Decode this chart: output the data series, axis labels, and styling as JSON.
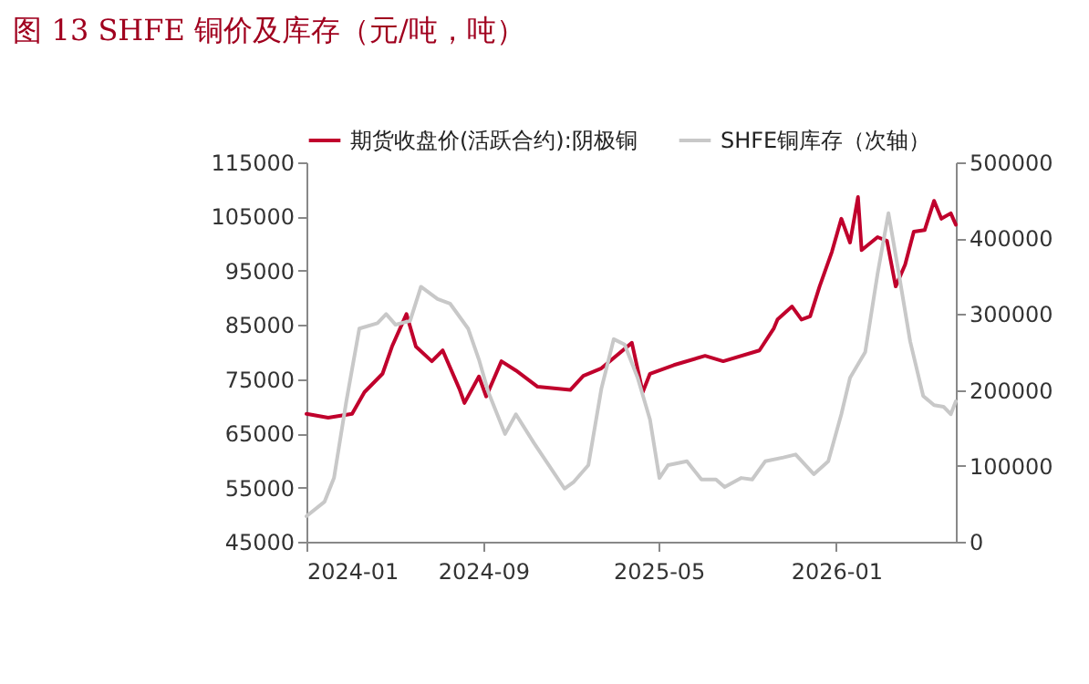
{
  "chart_data": {
    "type": "line",
    "title": "图 13  SHFE 铜价及库存（元/吨，吨）",
    "xlim": [
      "2024-01-01",
      "2026-06-15"
    ],
    "xticks": [
      "2024-01",
      "2024-09",
      "2025-05",
      "2026-01"
    ],
    "ylim": [
      45000,
      115000
    ],
    "yticks": [
      45000,
      55000,
      65000,
      75000,
      85000,
      95000,
      105000,
      115000
    ],
    "y2lim": [
      0,
      500000
    ],
    "y2ticks": [
      0,
      100000,
      200000,
      300000,
      400000,
      500000
    ],
    "legend": "top",
    "grid": false,
    "line_style": "solid",
    "marker": "none",
    "series": [
      {
        "name": "期货收盘价(活跃合约):阴极铜",
        "color": "#c0002c",
        "x": [
          "2024-01-01",
          "2024-01-31",
          "2024-03-04",
          "2024-03-21",
          "2024-04-15",
          "2024-04-28",
          "2024-05-18",
          "2024-05-31",
          "2024-06-22",
          "2024-07-07",
          "2024-07-30",
          "2024-08-06",
          "2024-08-26",
          "2024-09-05",
          "2024-09-26",
          "2024-10-16",
          "2024-11-15",
          "2024-12-30",
          "2025-01-17",
          "2025-02-11",
          "2025-03-25",
          "2025-04-09",
          "2025-04-19",
          "2025-05-22",
          "2025-07-04",
          "2025-07-29",
          "2025-09-17",
          "2025-10-07",
          "2025-10-12",
          "2025-11-01",
          "2025-11-14",
          "2025-11-26",
          "2025-12-09",
          "2025-12-26",
          "2026-01-08",
          "2026-01-20",
          "2026-01-31",
          "2026-02-05",
          "2026-02-27",
          "2026-03-12",
          "2026-03-24",
          "2026-04-06",
          "2026-04-18",
          "2026-05-03",
          "2026-05-16",
          "2026-05-26",
          "2026-06-08",
          "2026-06-15"
        ],
        "values": [
          68600,
          67900,
          68600,
          72600,
          76000,
          81000,
          87000,
          81000,
          78300,
          80300,
          73200,
          70600,
          75500,
          71800,
          78300,
          76600,
          73600,
          73000,
          75600,
          77000,
          81700,
          72600,
          76000,
          77600,
          79300,
          78300,
          80300,
          84400,
          86000,
          88400,
          86000,
          86600,
          92100,
          98500,
          104600,
          100200,
          108600,
          98800,
          101200,
          100500,
          92100,
          96100,
          102200,
          102500,
          107900,
          104600,
          105600,
          103500
        ]
      },
      {
        "name": "SHFE铜库存（次轴）",
        "color": "#c8c8c8",
        "axis": "y2",
        "x": [
          "2024-01-01",
          "2024-01-26",
          "2024-02-08",
          "2024-02-25",
          "2024-03-14",
          "2024-04-08",
          "2024-04-20",
          "2024-05-03",
          "2024-05-23",
          "2024-06-07",
          "2024-06-30",
          "2024-07-17",
          "2024-08-11",
          "2024-08-26",
          "2024-09-08",
          "2024-10-01",
          "2024-10-16",
          "2024-11-10",
          "2024-12-22",
          "2025-01-04",
          "2025-01-24",
          "2025-02-11",
          "2025-02-28",
          "2025-03-15",
          "2025-04-02",
          "2025-04-19",
          "2025-05-02",
          "2025-05-14",
          "2025-06-09",
          "2025-06-29",
          "2025-07-19",
          "2025-07-31",
          "2025-08-23",
          "2025-09-07",
          "2025-09-25",
          "2025-10-20",
          "2025-11-06",
          "2025-12-01",
          "2025-12-21",
          "2026-01-08",
          "2026-01-20",
          "2026-02-10",
          "2026-02-27",
          "2026-03-14",
          "2026-03-27",
          "2026-04-13",
          "2026-05-01",
          "2026-05-16",
          "2026-05-29",
          "2026-06-08",
          "2026-06-15"
        ],
        "values": [
          33600,
          52800,
          84000,
          185000,
          281000,
          288000,
          300000,
          286000,
          291000,
          336000,
          320000,
          314000,
          281000,
          240000,
          197000,
          142000,
          168000,
          130000,
          70000,
          79000,
          101000,
          202000,
          267000,
          260000,
          216000,
          161000,
          84000,
          101000,
          106000,
          82000,
          82000,
          72000,
          84000,
          82000,
          106000,
          111000,
          115000,
          89000,
          106000,
          168000,
          216000,
          250000,
          353000,
          433000,
          361000,
          264000,
          192000,
          180000,
          178000,
          168000,
          185000
        ]
      }
    ]
  }
}
